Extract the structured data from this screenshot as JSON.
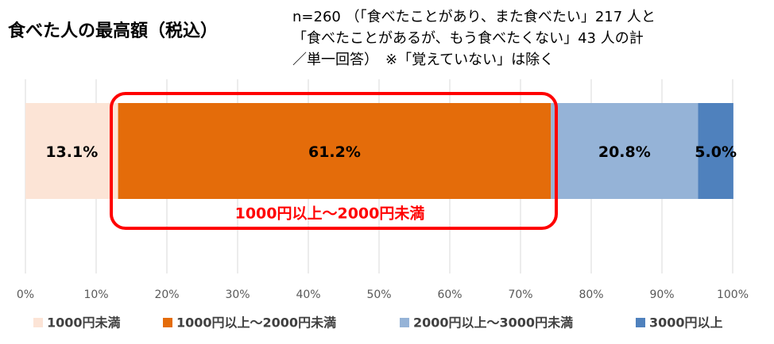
{
  "chart_data": {
    "type": "stacked-bar-100",
    "orientation": "horizontal",
    "title": "食べた人の最高額（税込）",
    "subtitle": [
      "n=260 （「食べたことがあり、また食べたい」217 人と",
      "「食べたことがあるが、もう食べたくない」43 人の計",
      "／単一回答）　※「覚えていない」は除く"
    ],
    "annotation": "1000円以上～2000円未満",
    "categories": [
      null
    ],
    "series": [
      {
        "name": "1000円未満",
        "color": "#fce4d6",
        "values": [
          13.1
        ],
        "value_labels": [
          "13.1%"
        ]
      },
      {
        "name": "1000円以上～2000円未満",
        "color": "#e46c0a",
        "values": [
          61.2
        ],
        "value_labels": [
          "61.2%"
        ]
      },
      {
        "name": "2000円以上～3000円未満",
        "color": "#95b3d7",
        "values": [
          20.8
        ],
        "value_labels": [
          "20.8%"
        ]
      },
      {
        "name": "3000円以上",
        "color": "#4f81bd",
        "values": [
          5.0
        ],
        "value_labels": [
          "5.0%"
        ]
      }
    ],
    "xlim": [
      0,
      100
    ],
    "xticks": [
      {
        "value": 0,
        "label": "0%"
      },
      {
        "value": 10,
        "label": "10%"
      },
      {
        "value": 20,
        "label": "20%"
      },
      {
        "value": 30,
        "label": "30%"
      },
      {
        "value": 40,
        "label": "40%"
      },
      {
        "value": 50,
        "label": "50%"
      },
      {
        "value": 60,
        "label": "60%"
      },
      {
        "value": 70,
        "label": "70%"
      },
      {
        "value": 80,
        "label": "80%"
      },
      {
        "value": 90,
        "label": "90%"
      },
      {
        "value": 100,
        "label": "100%"
      }
    ],
    "grid": true,
    "legend": "bottom"
  }
}
